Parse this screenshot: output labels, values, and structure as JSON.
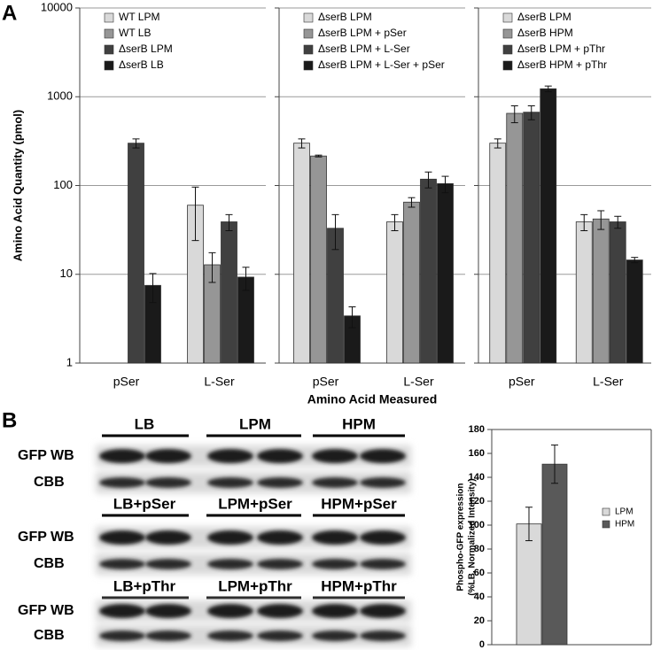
{
  "panel_labels": [
    "A",
    "B"
  ],
  "chart_data": [
    {
      "type": "bar",
      "log": true,
      "grid": true,
      "legend": "upper left",
      "ylabel": "Amino Acid Quantity (pmol)",
      "ylim": [
        1,
        10000
      ],
      "yticks": [
        1,
        10,
        100,
        1000,
        10000
      ],
      "categories": [
        "pSer",
        "L-Ser"
      ],
      "series": [
        {
          "name": "WT LPM",
          "color": "#d9d9d9",
          "values": [
            null,
            60
          ],
          "errors": [
            null,
            36
          ]
        },
        {
          "name": "WT  LB",
          "color": "#969696",
          "values": [
            null,
            12.8
          ],
          "errors": [
            null,
            4.7
          ]
        },
        {
          "name": "ΔserB LPM",
          "color": "#404040",
          "values": [
            300,
            39
          ],
          "errors": [
            35,
            8
          ]
        },
        {
          "name": "ΔserB LB",
          "color": "#1a1a1a",
          "values": [
            7.5,
            9.3
          ],
          "errors": [
            2.7,
            2.7
          ]
        }
      ]
    },
    {
      "type": "bar",
      "log": true,
      "grid": true,
      "legend": "upper left",
      "xlabel": "Amino Acid Measured",
      "ylim": [
        1,
        10000
      ],
      "yticks": [
        1,
        10,
        100,
        1000,
        10000
      ],
      "categories": [
        "pSer",
        "L-Ser"
      ],
      "series": [
        {
          "name": "ΔserB LPM",
          "color": "#d9d9d9",
          "values": [
            300,
            39
          ],
          "errors": [
            35,
            8
          ]
        },
        {
          "name": "ΔserB LPM + pSer",
          "color": "#969696",
          "values": [
            215,
            65
          ],
          "errors": [
            5,
            8
          ]
        },
        {
          "name": "ΔserB LPM + L-Ser",
          "color": "#404040",
          "values": [
            33,
            118
          ],
          "errors": [
            14,
            24
          ]
        },
        {
          "name": "ΔserB LPM + L-Ser + pSer",
          "color": "#1a1a1a",
          "values": [
            3.4,
            105
          ],
          "errors": [
            0.9,
            22
          ]
        }
      ]
    },
    {
      "type": "bar",
      "log": true,
      "grid": true,
      "legend": "upper left",
      "ylim": [
        1,
        10000
      ],
      "yticks": [
        1,
        10,
        100,
        1000,
        10000
      ],
      "categories": [
        "pSer",
        "L-Ser"
      ],
      "series": [
        {
          "name": "ΔserB LPM",
          "color": "#d9d9d9",
          "values": [
            300,
            39
          ],
          "errors": [
            35,
            8
          ]
        },
        {
          "name": "ΔserB HPM",
          "color": "#969696",
          "values": [
            650,
            42
          ],
          "errors": [
            140,
            10
          ]
        },
        {
          "name": "ΔserB LPM + pThr",
          "color": "#404040",
          "values": [
            670,
            39
          ],
          "errors": [
            120,
            6
          ]
        },
        {
          "name": "ΔserB HPM + pThr",
          "color": "#1a1a1a",
          "values": [
            1230,
            14.5
          ],
          "errors": [
            90,
            1
          ]
        }
      ]
    },
    {
      "type": "bar",
      "log": false,
      "grid": false,
      "legend": "right",
      "ylabel": [
        "Phospho-GFP expression",
        "(%LB, Normalized Intensity)"
      ],
      "ylim": [
        0,
        180
      ],
      "yticks": [
        0,
        20,
        40,
        60,
        80,
        100,
        120,
        140,
        160,
        180
      ],
      "categories": [
        null
      ],
      "series": [
        {
          "name": "LPM",
          "color": "#d9d9d9",
          "values": [
            101
          ],
          "errors": [
            14
          ]
        },
        {
          "name": "HPM",
          "color": "#595959",
          "values": [
            151
          ],
          "errors": [
            16
          ]
        }
      ]
    }
  ],
  "blot": {
    "groups": [
      {
        "conditions": [
          "LB",
          "LPM",
          "HPM"
        ],
        "rows": [
          "GFP WB",
          "CBB"
        ]
      },
      {
        "conditions": [
          "LB+pSer",
          "LPM+pSer",
          "HPM+pSer"
        ],
        "rows": [
          "GFP WB",
          "CBB"
        ]
      },
      {
        "conditions": [
          "LB+pThr",
          "LPM+pThr",
          "HPM+pThr"
        ],
        "rows": [
          "GFP WB",
          "CBB"
        ]
      }
    ]
  }
}
